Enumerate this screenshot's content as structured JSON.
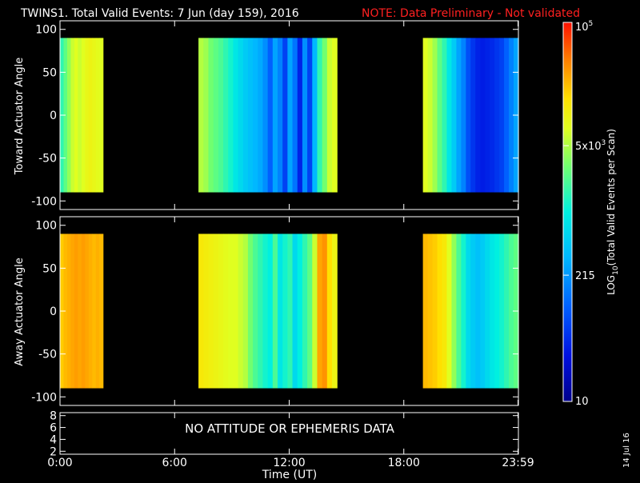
{
  "header": {
    "title": "TWINS1. Total Valid Events:  7 Jun (day 159), 2016",
    "note": "NOTE: Data Preliminary - Not validated",
    "note_color": "#ff2020"
  },
  "footer": {
    "date_stamp": "14 Jul 16"
  },
  "chart_data": [
    {
      "type": "heatmap",
      "panel": "toward",
      "ylabel": "Toward Actuator Angle",
      "ylim": [
        -110,
        110
      ],
      "yticks": [
        "100",
        "50",
        "0",
        "-50",
        "-100"
      ],
      "ytick_values": [
        100,
        50,
        0,
        -50,
        -100
      ],
      "data_y_range": [
        -90,
        90
      ],
      "xlim_hours": [
        0,
        24
      ],
      "scale": "log",
      "data_blocks": [
        {
          "start_hour": 0.0,
          "end_hour": 2.25,
          "level": [
            0.55,
            0.6,
            0.65,
            0.7,
            0.72,
            0.7,
            0.72,
            0.74,
            0.75,
            0.74,
            0.73,
            0.72
          ]
        },
        {
          "start_hour": 7.25,
          "end_hour": 14.5,
          "level": [
            0.68,
            0.66,
            0.62,
            0.6,
            0.58,
            0.55,
            0.52,
            0.48,
            0.45,
            0.42,
            0.4,
            0.38,
            0.36,
            0.32,
            0.25,
            0.35,
            0.3,
            0.2,
            0.35,
            0.28,
            0.15,
            0.32,
            0.2,
            0.38,
            0.55,
            0.62,
            0.7,
            0.72
          ]
        },
        {
          "start_hour": 19.0,
          "end_hour": 24.0,
          "level": [
            0.72,
            0.7,
            0.66,
            0.6,
            0.55,
            0.48,
            0.42,
            0.35,
            0.3,
            0.22,
            0.18,
            0.15,
            0.14,
            0.15,
            0.16,
            0.18,
            0.2,
            0.25,
            0.3,
            0.35
          ]
        }
      ]
    },
    {
      "type": "heatmap",
      "panel": "away",
      "ylabel": "Away Actuator Angle",
      "ylim": [
        -110,
        110
      ],
      "yticks": [
        "100",
        "50",
        "0",
        "-50",
        "-100"
      ],
      "ytick_values": [
        100,
        50,
        0,
        -50,
        -100
      ],
      "data_y_range": [
        -90,
        90
      ],
      "xlim_hours": [
        0,
        24
      ],
      "scale": "log",
      "data_blocks": [
        {
          "start_hour": 0.0,
          "end_hour": 2.25,
          "level": [
            0.82,
            0.84,
            0.85,
            0.86,
            0.87,
            0.86,
            0.87,
            0.86,
            0.85,
            0.84,
            0.85,
            0.84
          ]
        },
        {
          "start_hour": 7.25,
          "end_hour": 14.5,
          "level": [
            0.78,
            0.77,
            0.76,
            0.75,
            0.74,
            0.73,
            0.72,
            0.72,
            0.7,
            0.68,
            0.62,
            0.58,
            0.55,
            0.52,
            0.5,
            0.58,
            0.48,
            0.52,
            0.55,
            0.45,
            0.5,
            0.55,
            0.6,
            0.7,
            0.86,
            0.88,
            0.8,
            0.75
          ]
        },
        {
          "start_hour": 19.0,
          "end_hour": 24.0,
          "level": [
            0.84,
            0.83,
            0.82,
            0.8,
            0.78,
            0.72,
            0.65,
            0.58,
            0.52,
            0.45,
            0.42,
            0.4,
            0.42,
            0.45,
            0.48,
            0.5,
            0.52,
            0.55,
            0.58,
            0.6
          ]
        }
      ]
    },
    {
      "type": "line",
      "panel": "ephemeris",
      "ylim": [
        1.5,
        8.5
      ],
      "yticks": [
        "8",
        "6",
        "4",
        "2"
      ],
      "ytick_values": [
        8,
        6,
        4,
        2
      ],
      "message": "NO ATTITUDE OR EPHEMERIS DATA"
    }
  ],
  "x_axis": {
    "label": "Time (UT)",
    "ticks": [
      {
        "label": "0:00",
        "hour": 0
      },
      {
        "label": "6:00",
        "hour": 6
      },
      {
        "label": "12:00",
        "hour": 12
      },
      {
        "label": "18:00",
        "hour": 18
      },
      {
        "label": "23:59",
        "hour": 23.98
      }
    ]
  },
  "colorbar": {
    "label": "LOG10(Total Valid Events per Scan)",
    "label_main": "LOG",
    "label_sub": "10",
    "label_rest": "(Total Valid Events per Scan)",
    "range": [
      10,
      100000
    ],
    "ticks": [
      {
        "label": "10",
        "sup": "5",
        "base": "10",
        "value": 100000
      },
      {
        "label": "5x10",
        "sup": "3",
        "base": "5x10",
        "value": 5000
      },
      {
        "label": "215",
        "sup": "",
        "base": "215",
        "value": 215
      },
      {
        "label": "10",
        "sup": "",
        "base": "10",
        "value": 10
      }
    ]
  }
}
